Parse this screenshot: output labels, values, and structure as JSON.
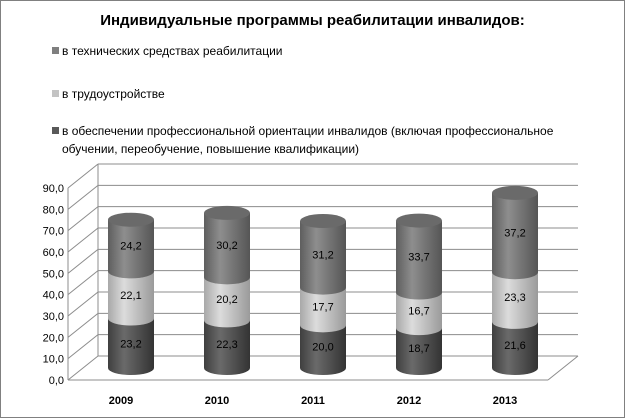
{
  "chart_data": {
    "type": "bar",
    "title": "Индивидуальные программы реабилитации инвалидов:",
    "categories": [
      "2009",
      "2010",
      "2011",
      "2012",
      "2013"
    ],
    "series": [
      {
        "name": "в обеспечении профессиональной ориентации инвалидов (включая профессиональное обучении, переобучение, повышение квалификации)",
        "labels": [
          "23,2",
          "22,3",
          "20,0",
          "18,7",
          "21,6"
        ],
        "values": [
          23.2,
          22.3,
          20.0,
          18.7,
          21.6
        ],
        "color": "#595959"
      },
      {
        "name": "в трудоустройстве",
        "labels": [
          "22,1",
          "20,2",
          "17,7",
          "16,7",
          "23,3"
        ],
        "values": [
          22.1,
          20.2,
          17.7,
          16.7,
          23.3
        ],
        "color": "#c3c3c3"
      },
      {
        "name": "в технических средствах реабилитации",
        "labels": [
          "24,2",
          "30,2",
          "31,2",
          "33,7",
          "37,2"
        ],
        "values": [
          24.2,
          30.2,
          31.2,
          33.7,
          37.2
        ],
        "color": "#7f7f7f"
      }
    ],
    "ylim": [
      0,
      90
    ],
    "yticks": [
      "0,0",
      "10,0",
      "20,0",
      "30,0",
      "40,0",
      "50,0",
      "60,0",
      "70,0",
      "80,0",
      "90,0"
    ],
    "stacked": true,
    "shape": "cylinder",
    "grid": true,
    "legend_position": "top"
  },
  "legend": [
    {
      "label": "в технических средствах реабилитации",
      "color": "#7f7f7f"
    },
    {
      "label": "в трудоустройстве",
      "color": "#c3c3c3"
    },
    {
      "label": "в обеспечении профессиональной ориентации инвалидов (включая профессиональное",
      "label2": "обучении, переобучение, повышение квалификации)",
      "color": "#595959"
    }
  ]
}
